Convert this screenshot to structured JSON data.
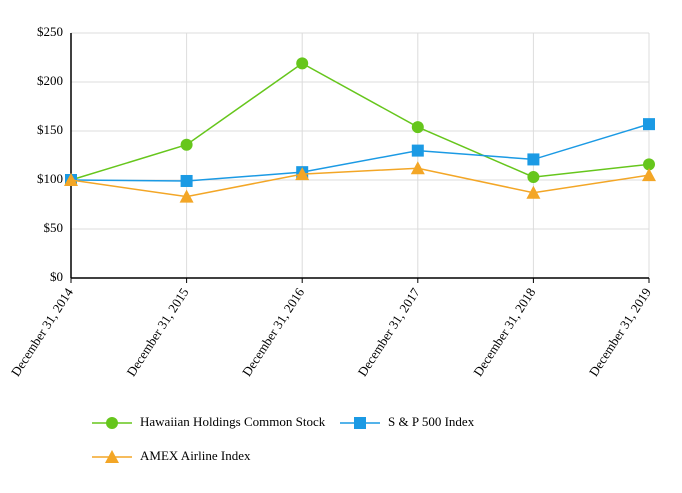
{
  "chart_data": {
    "type": "line",
    "categories": [
      "December 31, 2014",
      "December 31, 2015",
      "December 31, 2016",
      "December 31, 2017",
      "December 31, 2018",
      "December 31, 2019"
    ],
    "series": [
      {
        "name": "Hawaiian Holdings Common Stock",
        "color": "#66c61c",
        "marker": "circle",
        "values": [
          100,
          136,
          219,
          154,
          103,
          116
        ]
      },
      {
        "name": "S & P 500 Index",
        "color": "#1b9ae4",
        "marker": "square",
        "values": [
          100,
          99,
          108,
          130,
          121,
          157
        ]
      },
      {
        "name": "AMEX Airline Index",
        "color": "#f3a626",
        "marker": "triangle",
        "values": [
          100,
          83,
          106,
          112,
          87,
          105
        ]
      }
    ],
    "ylim": [
      0,
      250
    ],
    "yticks": [
      {
        "value": 0,
        "label": "$0"
      },
      {
        "value": 50,
        "label": "$50"
      },
      {
        "value": 100,
        "label": "$100"
      },
      {
        "value": 150,
        "label": "$150"
      },
      {
        "value": 200,
        "label": "$200"
      },
      {
        "value": 250,
        "label": "$250"
      }
    ],
    "grid": true
  }
}
